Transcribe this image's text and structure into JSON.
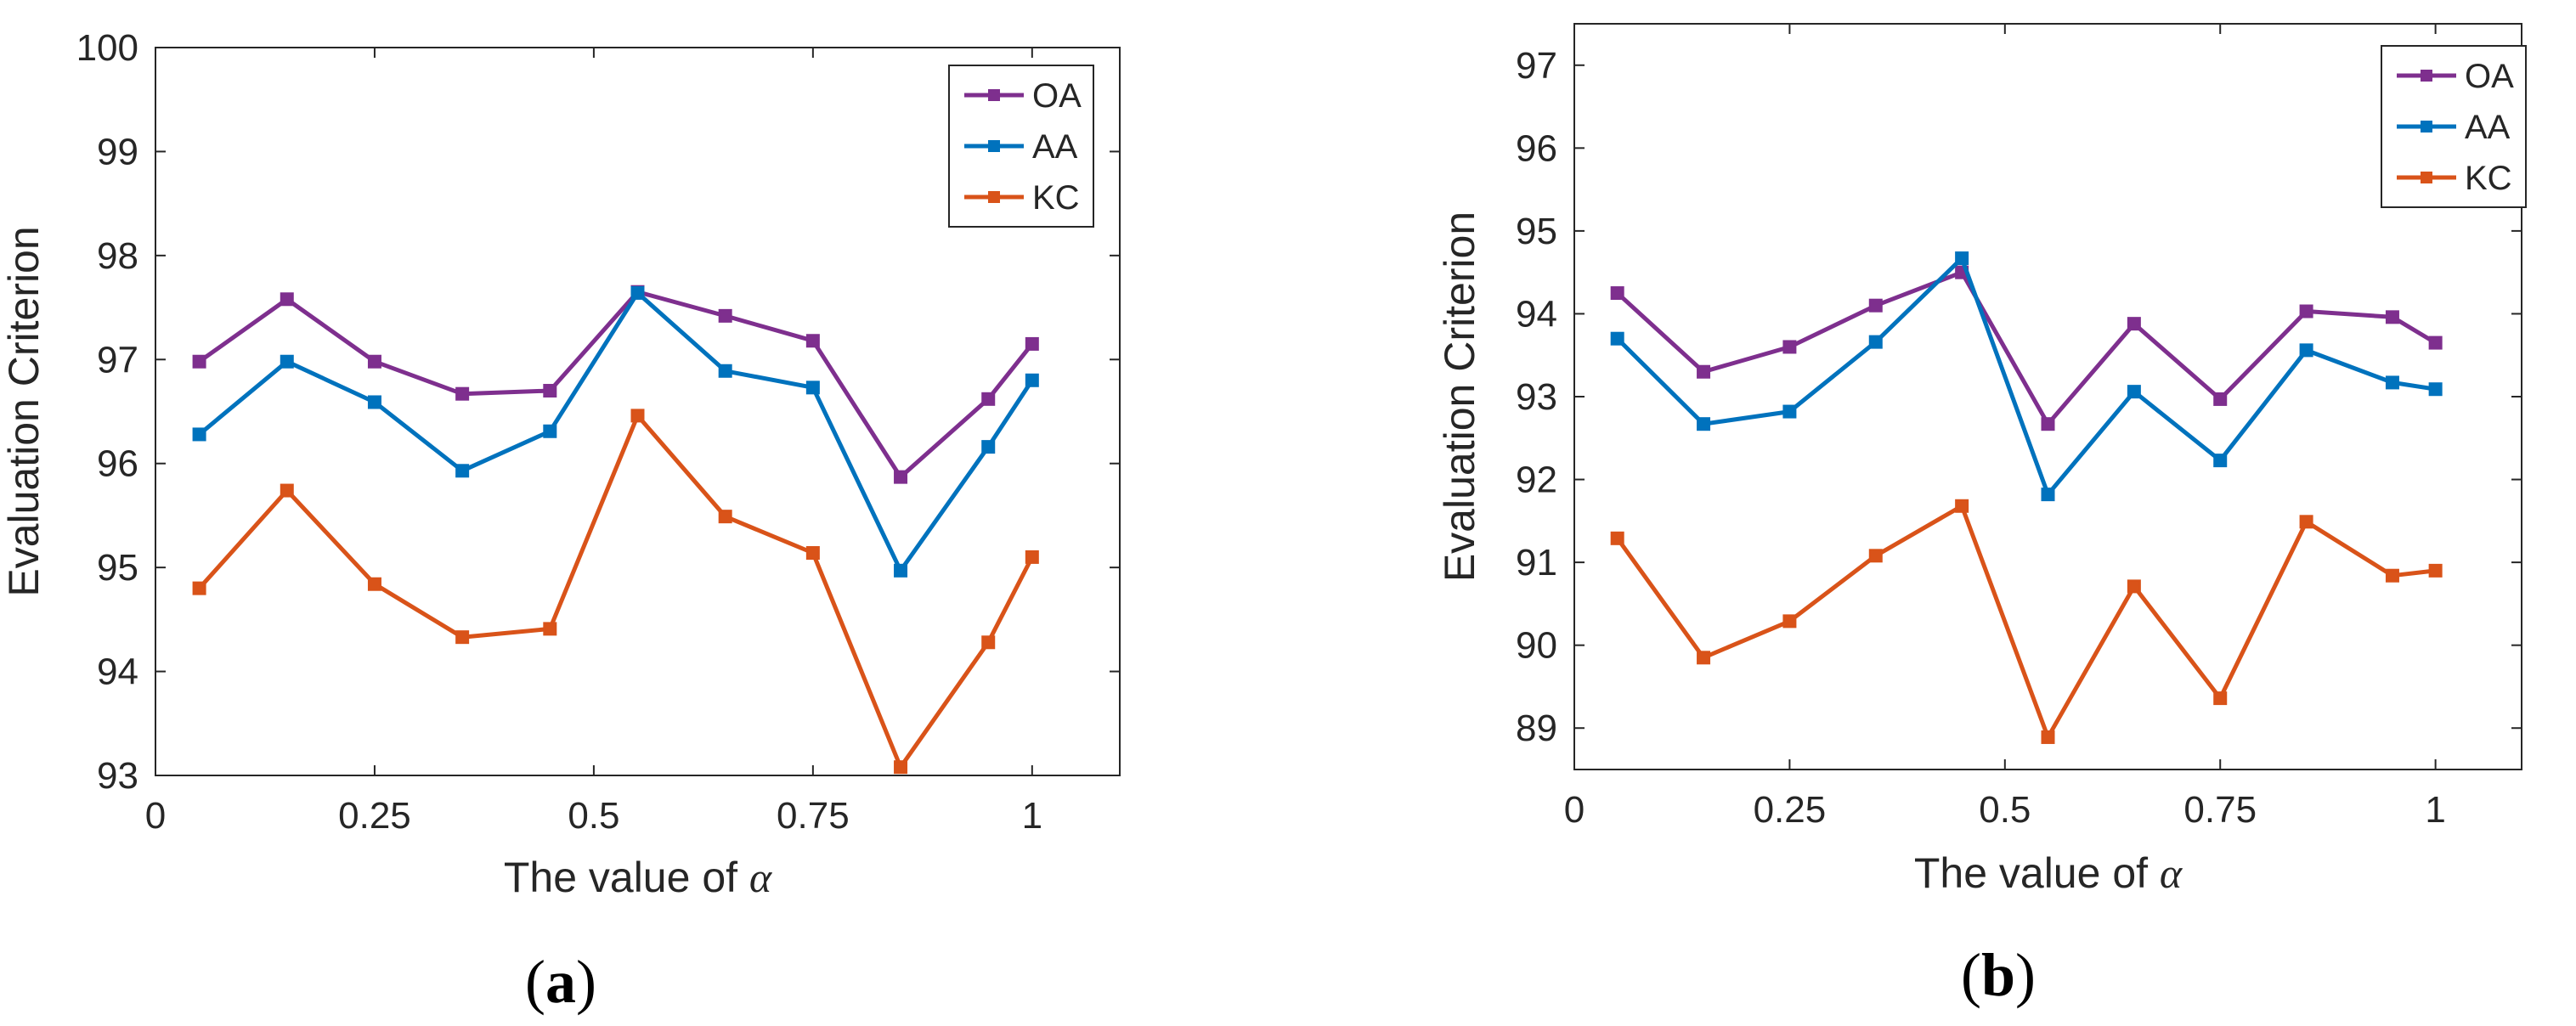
{
  "chart_data": [
    {
      "type": "line",
      "panel_label": "a",
      "xlabel": "The value of",
      "xlabel_symbol": "α",
      "ylabel": "Evaluation Criterion",
      "xlim": [
        0,
        1.1
      ],
      "ylim": [
        93,
        100
      ],
      "xticks": [
        0,
        0.25,
        0.5,
        0.75,
        1
      ],
      "xtick_labels": [
        "0",
        "0.25",
        "0.5",
        "0.75",
        "1"
      ],
      "yticks": [
        93,
        94,
        95,
        96,
        97,
        98,
        99,
        100
      ],
      "ytick_labels": [
        "93",
        "94",
        "95",
        "96",
        "97",
        "98",
        "99",
        "100"
      ],
      "legend_position": "top-right",
      "grid": false,
      "x": [
        0.05,
        0.15,
        0.25,
        0.35,
        0.45,
        0.55,
        0.65,
        0.75,
        0.85,
        0.95,
        1.0
      ],
      "series": [
        {
          "name": "OA",
          "color": "#7E2F8E",
          "values": [
            96.98,
            97.58,
            96.98,
            96.67,
            96.7,
            97.65,
            97.42,
            97.18,
            95.87,
            96.62,
            97.15
          ]
        },
        {
          "name": "AA",
          "color": "#0072BD",
          "values": [
            96.28,
            96.98,
            96.59,
            95.93,
            96.31,
            97.64,
            96.89,
            96.73,
            94.97,
            96.16,
            96.8
          ]
        },
        {
          "name": "KC",
          "color": "#D95319",
          "values": [
            94.8,
            95.74,
            94.84,
            94.33,
            94.41,
            96.46,
            95.49,
            95.14,
            93.08,
            94.28,
            95.1
          ]
        }
      ]
    },
    {
      "type": "line",
      "panel_label": "b",
      "xlabel": "The value of",
      "xlabel_symbol": "α",
      "ylabel": "Evaluation Criterion",
      "xlim": [
        0,
        1.1
      ],
      "ylim": [
        88.5,
        97.5
      ],
      "xticks": [
        0,
        0.25,
        0.5,
        0.75,
        1
      ],
      "xtick_labels": [
        "0",
        "0.25",
        "0.5",
        "0.75",
        "1"
      ],
      "yticks": [
        89,
        90,
        91,
        92,
        93,
        94,
        95,
        96,
        97
      ],
      "ytick_labels": [
        "89",
        "90",
        "91",
        "92",
        "93",
        "94",
        "95",
        "96",
        "97"
      ],
      "legend_position": "top-right",
      "grid": false,
      "x": [
        0.05,
        0.15,
        0.25,
        0.35,
        0.45,
        0.55,
        0.65,
        0.75,
        0.85,
        0.95,
        1.0
      ],
      "series": [
        {
          "name": "OA",
          "color": "#7E2F8E",
          "values": [
            94.25,
            93.3,
            93.6,
            94.1,
            94.5,
            92.67,
            93.88,
            92.97,
            94.03,
            93.96,
            93.65
          ]
        },
        {
          "name": "AA",
          "color": "#0072BD",
          "values": [
            93.7,
            92.67,
            92.82,
            93.66,
            94.67,
            91.82,
            93.06,
            92.23,
            93.56,
            93.17,
            93.09
          ]
        },
        {
          "name": "KC",
          "color": "#D95319",
          "values": [
            91.29,
            89.85,
            90.29,
            91.08,
            91.68,
            88.89,
            90.71,
            89.36,
            91.49,
            90.84,
            90.9
          ]
        }
      ]
    }
  ]
}
